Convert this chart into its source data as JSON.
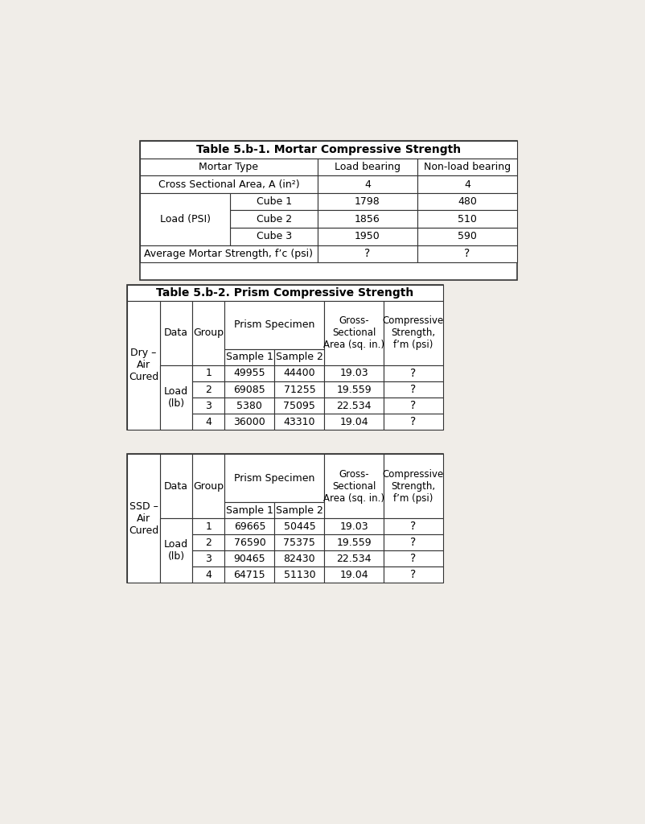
{
  "table1_title": "Table 5.b-1. Mortar Compressive Strength",
  "table2_title": "Table 5.b-2. Prism Compressive Strength",
  "bg_color": "#f0ede8",
  "font_size": 9,
  "t1": {
    "col_headers": [
      "Mortar Type",
      "Load bearing",
      "Non-load bearing"
    ],
    "row_cross": [
      "Cross Sectional Area, A (in²)",
      "4",
      "4"
    ],
    "cubes": [
      [
        "Cube 1",
        "1798",
        "480"
      ],
      [
        "Cube 2",
        "1856",
        "510"
      ],
      [
        "Cube 3",
        "1950",
        "590"
      ]
    ],
    "row_avg": [
      "Average Mortar Strength, f’c (psi)",
      "?",
      "?"
    ]
  },
  "t2_dry": {
    "section_label": "Dry –\nAir\nCured",
    "gross_label": "Gross-\nSectional\nArea (sq. in.)",
    "comp_label": "Compressive\nStrength,\nf’m (psi)",
    "rows": [
      [
        "1",
        "49955",
        "44400",
        "19.03",
        "?"
      ],
      [
        "2",
        "69085",
        "71255",
        "19.559",
        "?"
      ],
      [
        "3",
        "5380",
        "75095",
        "22.534",
        "?"
      ],
      [
        "4",
        "36000",
        "43310",
        "19.04",
        "?"
      ]
    ]
  },
  "t2_ssd": {
    "section_label": "SSD –\nAir\nCured",
    "gross_label": "Gross-\nSectional\nArea (sq. in.)",
    "comp_label": "Compressive\nStrength,\nf’m (psi)",
    "rows": [
      [
        "1",
        "69665",
        "50445",
        "19.03",
        "?"
      ],
      [
        "2",
        "76590",
        "75375",
        "19.559",
        "?"
      ],
      [
        "3",
        "90465",
        "82430",
        "22.534",
        "?"
      ],
      [
        "4",
        "64715",
        "51130",
        "19.04",
        "?"
      ]
    ]
  }
}
